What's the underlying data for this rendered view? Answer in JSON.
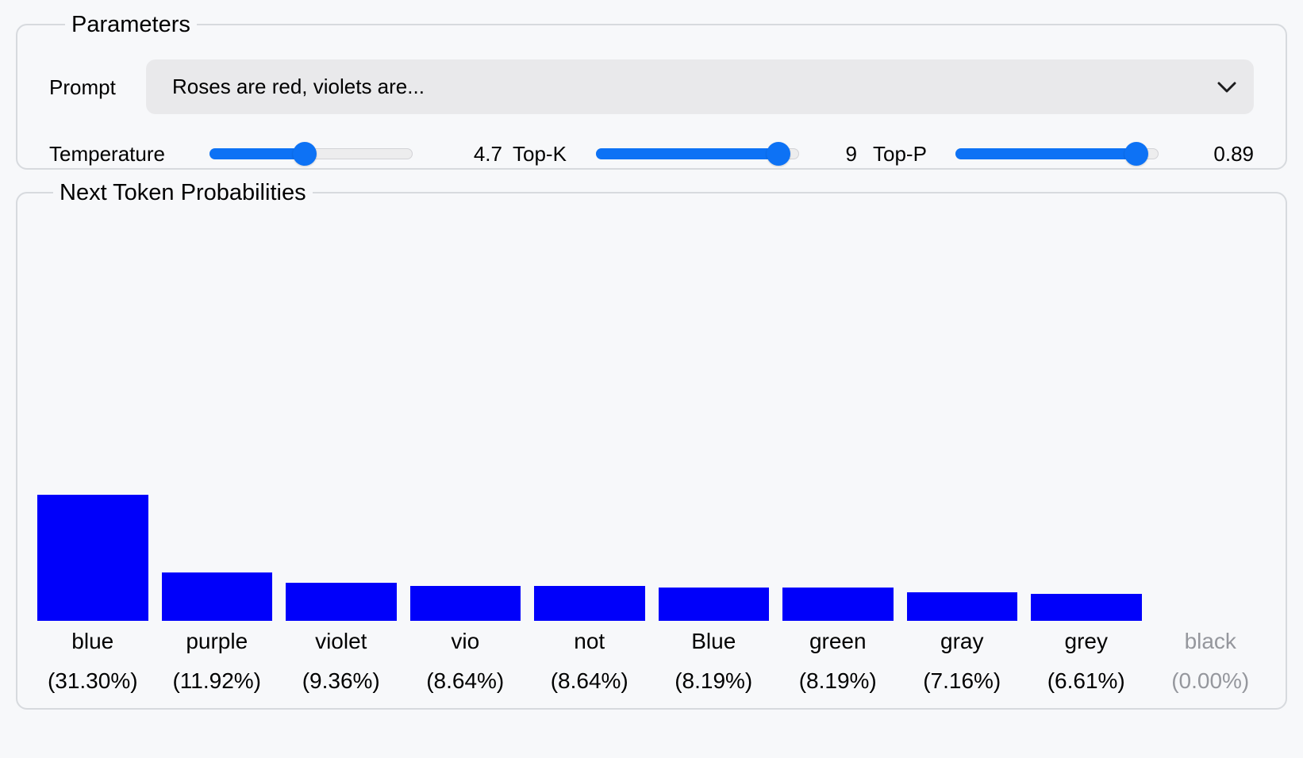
{
  "parameters": {
    "legend": "Parameters",
    "prompt": {
      "label": "Prompt",
      "value": "Roses are red, violets are..."
    },
    "sliders": [
      {
        "id": "temperature",
        "label": "Temperature",
        "value": "4.7",
        "fill_pct": 47
      },
      {
        "id": "top-k",
        "label": "Top-K",
        "value": "9",
        "fill_pct": 90
      },
      {
        "id": "top-p",
        "label": "Top-P",
        "value": "0.89",
        "fill_pct": 89
      }
    ]
  },
  "chart": {
    "legend": "Next Token Probabilities"
  },
  "chart_data": {
    "type": "bar",
    "title": "Next Token Probabilities",
    "categories": [
      "blue",
      "purple",
      "violet",
      "vio",
      "not",
      "Blue",
      "green",
      "gray",
      "grey",
      "black"
    ],
    "values": [
      31.3,
      11.92,
      9.36,
      8.64,
      8.64,
      8.19,
      8.19,
      7.16,
      6.61,
      0.0
    ],
    "value_labels": [
      "(31.30%)",
      "(11.92%)",
      "(9.36%)",
      "(8.64%)",
      "(8.64%)",
      "(8.19%)",
      "(8.19%)",
      "(7.16%)",
      "(6.61%)",
      "(0.00%)"
    ],
    "xlabel": "",
    "ylabel": "",
    "ylim": [
      0,
      100
    ],
    "grid": false,
    "bar_color": "#0000fa",
    "muted_label_color": "#95979d"
  },
  "colors": {
    "accent_blue": "#0d72f5",
    "bar_blue": "#0000fa",
    "panel_border": "#d7dade",
    "control_bg": "#e9e9eb",
    "page_bg": "#f7f8fa"
  }
}
